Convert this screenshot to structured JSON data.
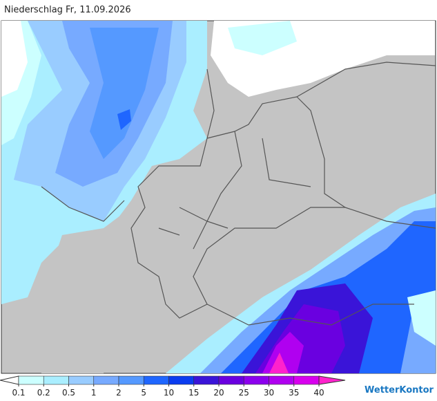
{
  "title": "Niederschlag Fr, 11.09.2026",
  "legend": {
    "ticks": [
      0.1,
      0.2,
      0.5,
      1,
      2,
      5,
      10,
      15,
      20,
      25,
      30,
      35,
      40
    ],
    "colors": [
      "#ccffff",
      "#aaeeff",
      "#99ccff",
      "#77aaff",
      "#5599ff",
      "#1f66ff",
      "#0a3cf0",
      "#3a14d8",
      "#6a00e0",
      "#8c00ee",
      "#b000f0",
      "#d800ee",
      "#ff22cc"
    ]
  },
  "brand": "WetterKontor"
}
